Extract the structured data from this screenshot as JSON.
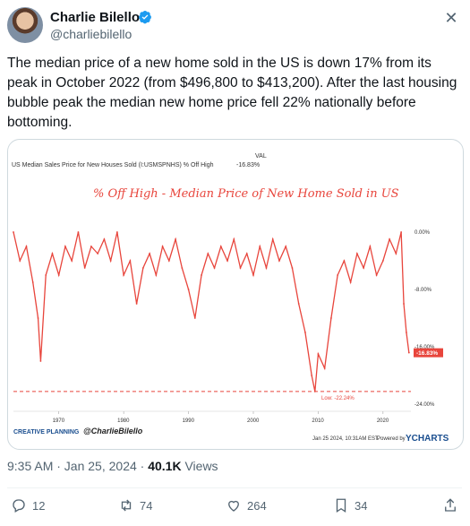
{
  "author": {
    "name": "Charlie Bilello",
    "handle": "@charliebilello"
  },
  "tweet": {
    "text": "The median price of a new home sold in the US is down 17% from its peak in October 2022 (from $496,800 to $413,200). After the last housing bubble peak the median new home price fell 22% nationally before bottoming."
  },
  "meta": {
    "time": "9:35 AM · Jan 25, 2024 · ",
    "views": "40.1K",
    "views_label": " Views"
  },
  "actions": {
    "replies": "12",
    "reposts": "74",
    "likes": "264",
    "bookmarks": "34"
  },
  "chart_data": {
    "type": "line",
    "header_left": "US Median Sales Price for New Houses Sold (I:USMSPNHS) % Off High",
    "header_val_label": "VAL",
    "header_val": "-16.83%",
    "title": "% Off High - Median Price of New Home Sold in US",
    "x_ticks": [
      "1970",
      "1980",
      "1990",
      "2000",
      "2010",
      "2020"
    ],
    "y_ticks": [
      "0.00%",
      "-8.00%",
      "-16.00%",
      "-24.00%"
    ],
    "ylim": [
      -24,
      0
    ],
    "current_label": "-16.83%",
    "low_label": "Low: -22.24%",
    "low_value": -22.24,
    "footer_brand": "CREATIVE PLANNING",
    "footer_handle": "@CharlieBilello",
    "footer_date": "Jan 25 2024, 10:31AM EST.",
    "footer_powered": "Powered by",
    "footer_ycharts": "YCHARTS",
    "colors": {
      "line": "#e8453c",
      "low_line": "#e8453c",
      "text": "#333333"
    },
    "series": [
      {
        "x": 1963.0,
        "y": 0
      },
      {
        "x": 1964.0,
        "y": -4
      },
      {
        "x": 1965.0,
        "y": -2
      },
      {
        "x": 1966.0,
        "y": -7
      },
      {
        "x": 1966.8,
        "y": -12
      },
      {
        "x": 1967.2,
        "y": -18
      },
      {
        "x": 1968.0,
        "y": -6
      },
      {
        "x": 1969.0,
        "y": -3
      },
      {
        "x": 1970.0,
        "y": -6
      },
      {
        "x": 1971.0,
        "y": -2
      },
      {
        "x": 1972.0,
        "y": -4
      },
      {
        "x": 1973.0,
        "y": 0
      },
      {
        "x": 1974.0,
        "y": -5
      },
      {
        "x": 1975.0,
        "y": -2
      },
      {
        "x": 1976.0,
        "y": -3
      },
      {
        "x": 1977.0,
        "y": -1
      },
      {
        "x": 1978.0,
        "y": -4
      },
      {
        "x": 1979.0,
        "y": 0
      },
      {
        "x": 1980.0,
        "y": -6
      },
      {
        "x": 1981.0,
        "y": -4
      },
      {
        "x": 1982.0,
        "y": -10
      },
      {
        "x": 1983.0,
        "y": -5
      },
      {
        "x": 1984.0,
        "y": -3
      },
      {
        "x": 1985.0,
        "y": -6
      },
      {
        "x": 1986.0,
        "y": -2
      },
      {
        "x": 1987.0,
        "y": -4
      },
      {
        "x": 1988.0,
        "y": -1
      },
      {
        "x": 1989.0,
        "y": -5
      },
      {
        "x": 1990.0,
        "y": -8
      },
      {
        "x": 1991.0,
        "y": -12
      },
      {
        "x": 1992.0,
        "y": -6
      },
      {
        "x": 1993.0,
        "y": -3
      },
      {
        "x": 1994.0,
        "y": -5
      },
      {
        "x": 1995.0,
        "y": -2
      },
      {
        "x": 1996.0,
        "y": -4
      },
      {
        "x": 1997.0,
        "y": -1
      },
      {
        "x": 1998.0,
        "y": -5
      },
      {
        "x": 1999.0,
        "y": -3
      },
      {
        "x": 2000.0,
        "y": -6
      },
      {
        "x": 2001.0,
        "y": -2
      },
      {
        "x": 2002.0,
        "y": -5
      },
      {
        "x": 2003.0,
        "y": -1
      },
      {
        "x": 2004.0,
        "y": -4
      },
      {
        "x": 2005.0,
        "y": -2
      },
      {
        "x": 2006.0,
        "y": -5
      },
      {
        "x": 2007.0,
        "y": -10
      },
      {
        "x": 2008.0,
        "y": -14
      },
      {
        "x": 2009.0,
        "y": -20
      },
      {
        "x": 2009.5,
        "y": -22.24
      },
      {
        "x": 2010.0,
        "y": -17
      },
      {
        "x": 2011.0,
        "y": -19
      },
      {
        "x": 2012.0,
        "y": -12
      },
      {
        "x": 2013.0,
        "y": -6
      },
      {
        "x": 2014.0,
        "y": -4
      },
      {
        "x": 2015.0,
        "y": -7
      },
      {
        "x": 2016.0,
        "y": -3
      },
      {
        "x": 2017.0,
        "y": -5
      },
      {
        "x": 2018.0,
        "y": -2
      },
      {
        "x": 2019.0,
        "y": -6
      },
      {
        "x": 2020.0,
        "y": -4
      },
      {
        "x": 2021.0,
        "y": -1
      },
      {
        "x": 2022.0,
        "y": -3
      },
      {
        "x": 2022.8,
        "y": 0
      },
      {
        "x": 2023.2,
        "y": -10
      },
      {
        "x": 2023.6,
        "y": -14
      },
      {
        "x": 2024.0,
        "y": -16.83
      }
    ]
  }
}
